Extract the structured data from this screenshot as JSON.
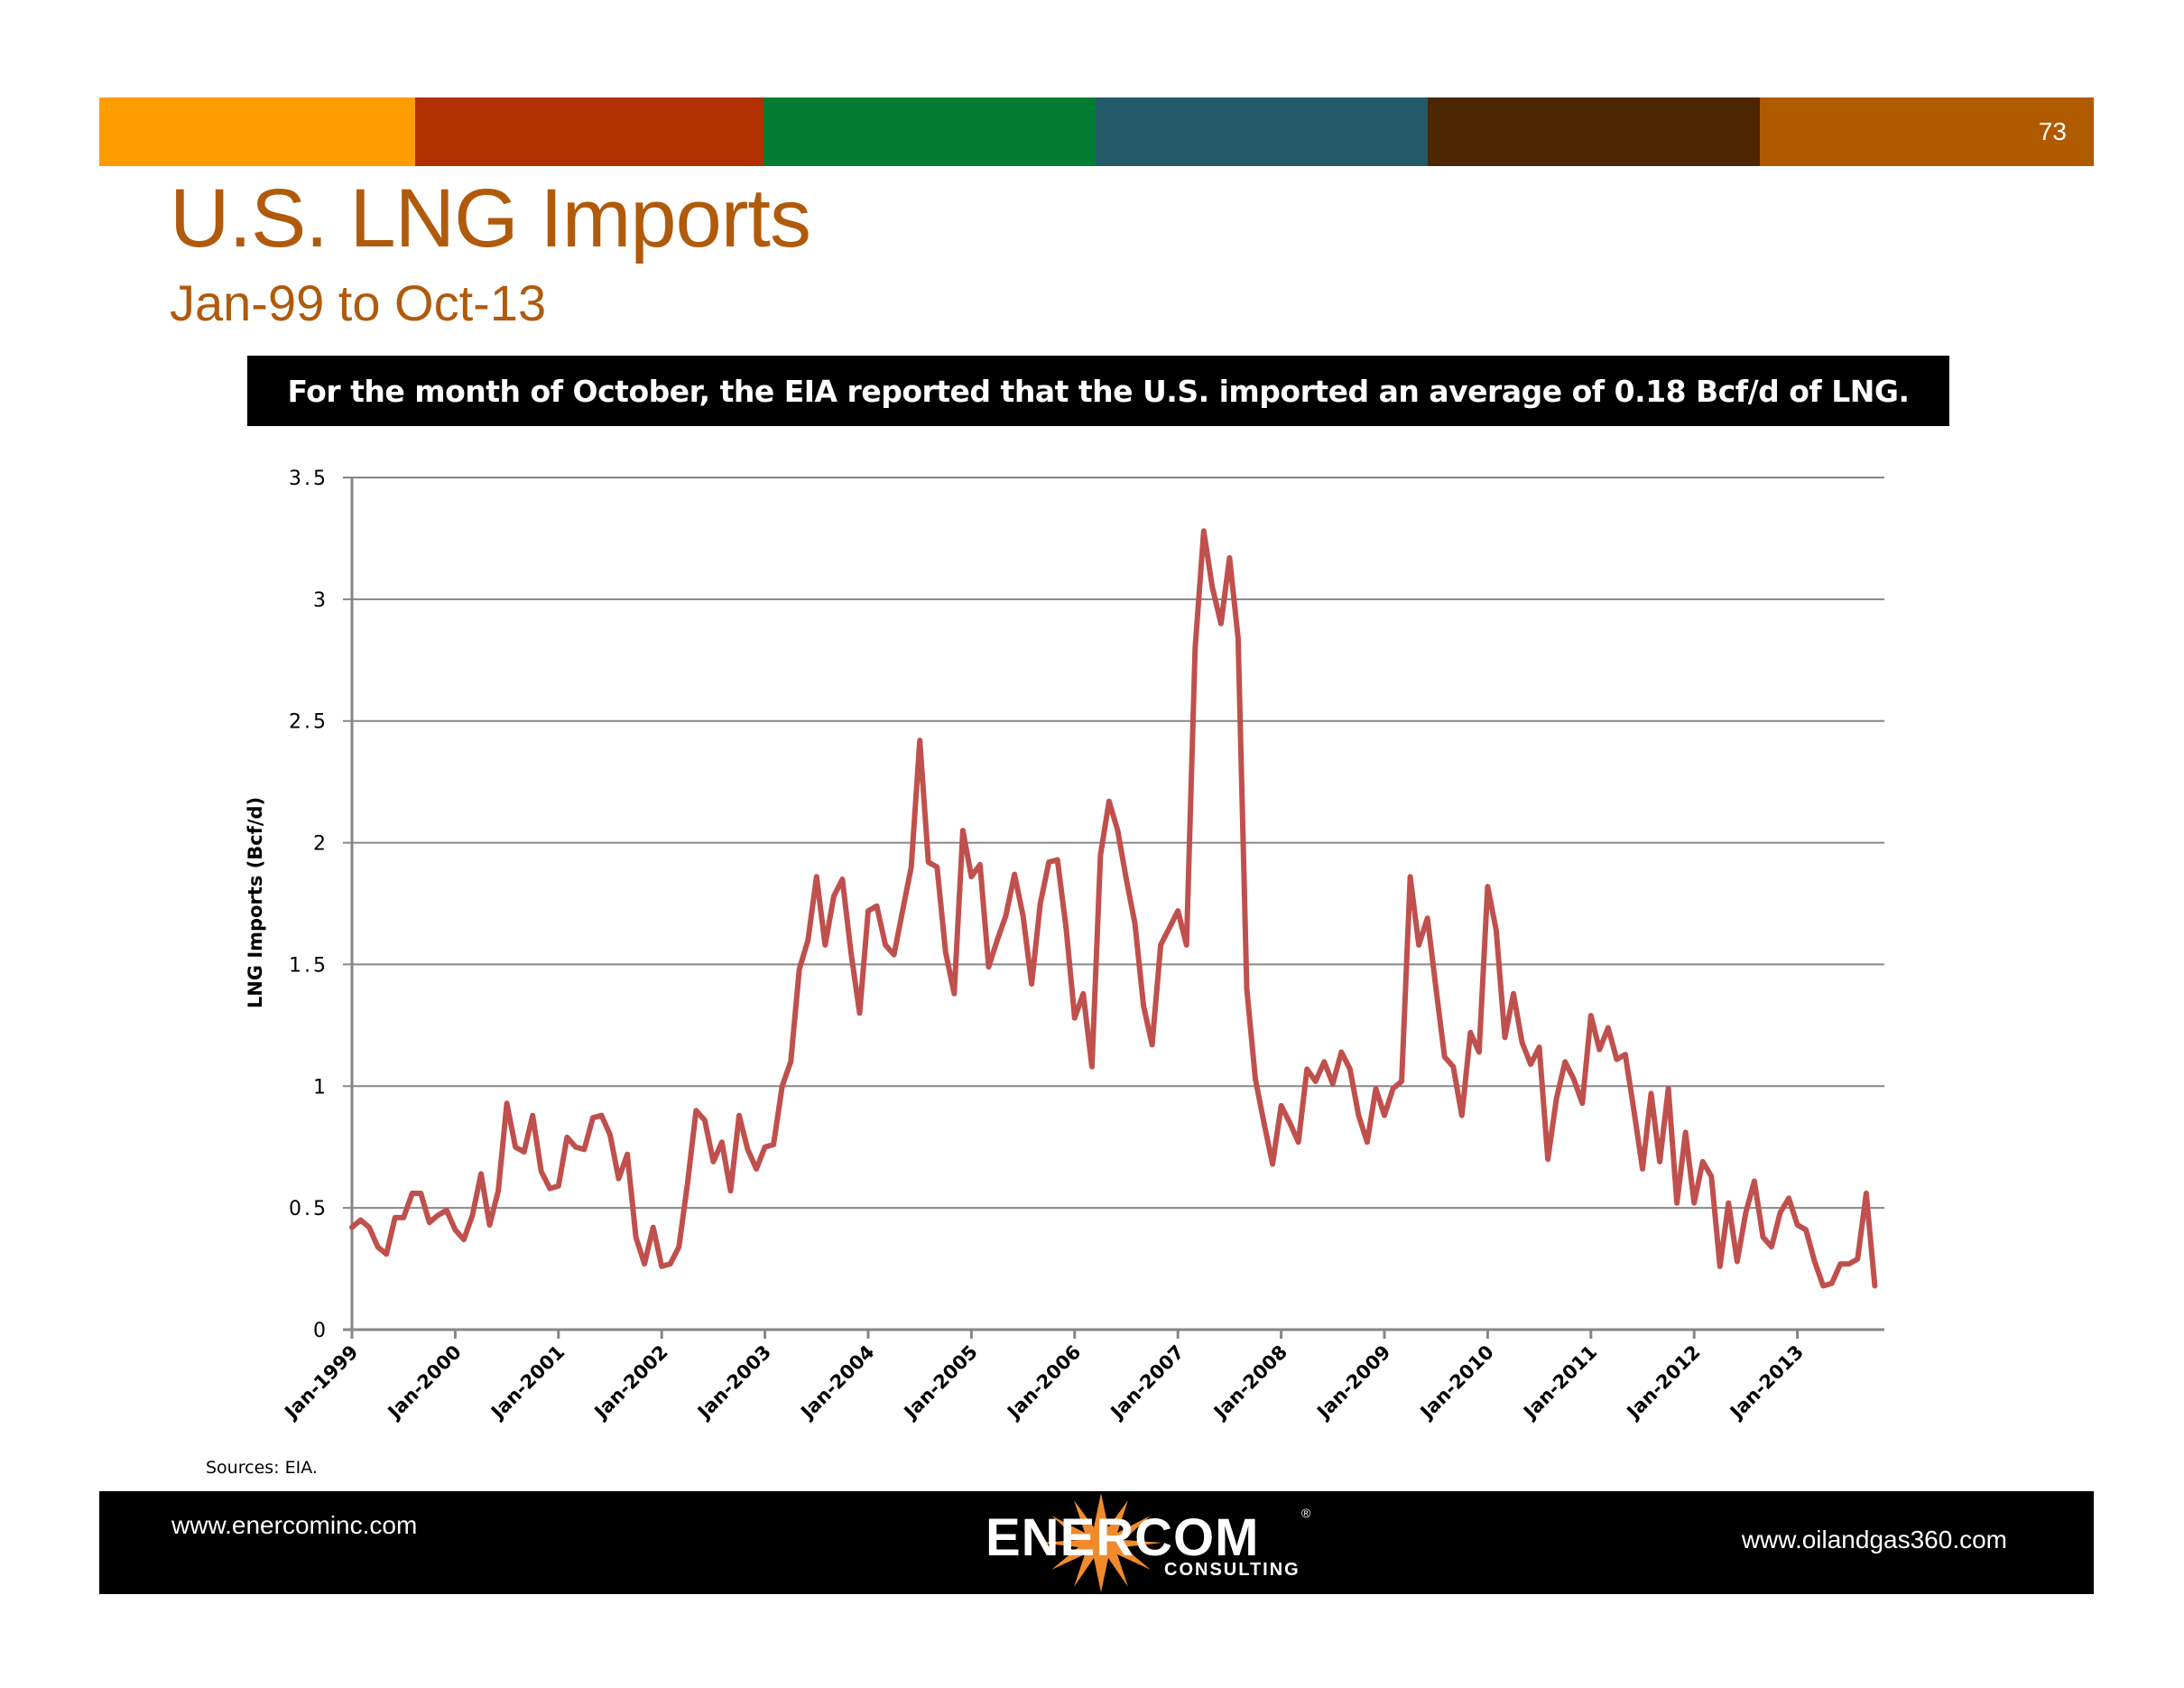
{
  "header": {
    "page_number": "73",
    "color_bar": [
      "#ff9c00",
      "#b03000",
      "#007d32",
      "#225a6a",
      "#4c2600",
      "#b05a00"
    ]
  },
  "title": "U.S. LNG Imports",
  "subtitle": "Jan-99 to Oct-13",
  "banner_text": "For the month of October, the EIA reported that the U.S. imported an average of 0.18 Bcf/d of LNG.",
  "sources": "Sources: EIA.",
  "footer": {
    "left_link": "www.enercominc.com",
    "right_link": "www.oilandgas360.com",
    "logo_text": "ENERCOM",
    "logo_sub": "CONSULTING",
    "logo_reg": "®"
  },
  "chart_data": {
    "type": "line",
    "title": "",
    "xlabel": "",
    "ylabel": "LNG Imports (Bcf/d)",
    "ylim": [
      0,
      3.5
    ],
    "yticks": [
      "0",
      "0.5",
      "1",
      "1.5",
      "2",
      "2.5",
      "3",
      "3.5"
    ],
    "xtick_labels": [
      "Jan-1999",
      "Jan-2000",
      "Jan-2001",
      "Jan-2002",
      "Jan-2003",
      "Jan-2004",
      "Jan-2005",
      "Jan-2006",
      "Jan-2007",
      "Jan-2008",
      "Jan-2009",
      "Jan-2010",
      "Jan-2011",
      "Jan-2012",
      "Jan-2013"
    ],
    "x_start": "Jan-1999",
    "x_end": "Oct-2013",
    "frequency": "monthly",
    "grid": true,
    "line_color": "#c0504d",
    "series": [
      {
        "name": "LNG Imports",
        "values": [
          0.42,
          0.45,
          0.42,
          0.34,
          0.31,
          0.46,
          0.46,
          0.56,
          0.56,
          0.44,
          0.47,
          0.49,
          0.41,
          0.37,
          0.47,
          0.64,
          0.43,
          0.57,
          0.93,
          0.75,
          0.73,
          0.88,
          0.65,
          0.58,
          0.59,
          0.79,
          0.75,
          0.74,
          0.87,
          0.88,
          0.8,
          0.62,
          0.72,
          0.38,
          0.27,
          0.42,
          0.26,
          0.27,
          0.34,
          0.6,
          0.9,
          0.86,
          0.69,
          0.77,
          0.57,
          0.88,
          0.74,
          0.66,
          0.75,
          0.76,
          1.0,
          1.1,
          1.48,
          1.6,
          1.86,
          1.58,
          1.78,
          1.85,
          1.55,
          1.3,
          1.72,
          1.74,
          1.58,
          1.54,
          1.72,
          1.9,
          2.42,
          1.92,
          1.9,
          1.55,
          1.38,
          2.05,
          1.86,
          1.91,
          1.49,
          1.6,
          1.7,
          1.87,
          1.7,
          1.42,
          1.75,
          1.92,
          1.93,
          1.65,
          1.28,
          1.38,
          1.08,
          1.95,
          2.17,
          2.05,
          1.85,
          1.67,
          1.33,
          1.17,
          1.58,
          1.65,
          1.72,
          1.58,
          2.8,
          3.28,
          3.05,
          2.9,
          3.17,
          2.84,
          1.4,
          1.03,
          0.85,
          0.68,
          0.92,
          0.85,
          0.77,
          1.07,
          1.02,
          1.1,
          1.01,
          1.14,
          1.07,
          0.88,
          0.77,
          0.99,
          0.88,
          0.99,
          1.02,
          1.86,
          1.58,
          1.69,
          1.4,
          1.12,
          1.08,
          0.88,
          1.22,
          1.14,
          1.82,
          1.64,
          1.2,
          1.38,
          1.18,
          1.09,
          1.16,
          0.7,
          0.95,
          1.1,
          1.03,
          0.93,
          1.29,
          1.15,
          1.24,
          1.11,
          1.13,
          0.9,
          0.66,
          0.97,
          0.69,
          0.99,
          0.52,
          0.81,
          0.52,
          0.69,
          0.63,
          0.26,
          0.52,
          0.28,
          0.48,
          0.61,
          0.38,
          0.34,
          0.48,
          0.54,
          0.43,
          0.41,
          0.28,
          0.18,
          0.19,
          0.27,
          0.27,
          0.29,
          0.56,
          0.18
        ]
      }
    ]
  }
}
